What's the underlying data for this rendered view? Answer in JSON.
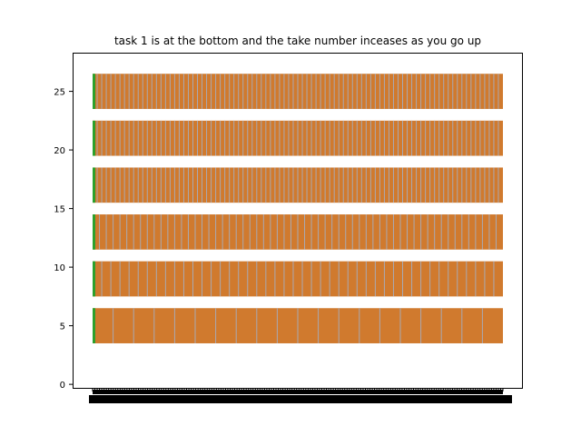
{
  "chart_data": {
    "type": "bar",
    "orientation": "horizontal-broken-bars",
    "title": "task 1 is at the bottom and the take number inceases as you go up",
    "xlabel": "",
    "ylabel": "",
    "ylim": [
      -0.3,
      28.3
    ],
    "yticks": [
      0,
      5,
      10,
      15,
      20,
      25
    ],
    "ytick_labels": [
      "0",
      "5",
      "10",
      "15",
      "20",
      "25"
    ],
    "grid": false,
    "xticks_note": "dense overlapping tick labels (illegible)",
    "x_range": [
      1,
      180
    ],
    "rows": [
      {
        "y_center": 5,
        "height": 3,
        "segments": 180,
        "gap_every": 9
      },
      {
        "y_center": 9,
        "height": 3,
        "segments": 180,
        "gap_every": 4
      },
      {
        "y_center": 13,
        "height": 3,
        "segments": 180,
        "gap_every": 3
      },
      {
        "y_center": 17,
        "height": 3,
        "segments": 180,
        "gap_every": 2
      },
      {
        "y_center": 21,
        "height": 3,
        "segments": 180,
        "gap_every": 2
      },
      {
        "y_center": 25,
        "height": 3,
        "segments": 180,
        "gap_every": 2
      }
    ],
    "colors": {
      "start_marker": "#2ca02c",
      "segment": "#d07a2e",
      "gap": "#a9a9b2"
    }
  }
}
